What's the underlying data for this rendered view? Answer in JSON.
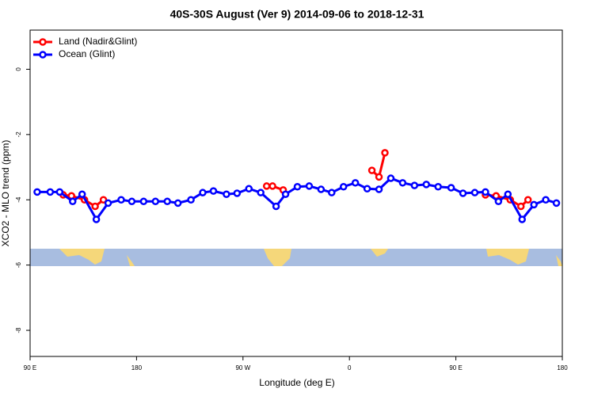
{
  "chart_data": {
    "type": "line",
    "title": "40S-30S August (Ver 9)   2014-09-06 to 2018-12-31",
    "x_label": "Longitude (deg E)",
    "y_label": "XCO2 - MLO trend (ppm)",
    "xlim": [
      90,
      540
    ],
    "xticks": [
      {
        "value": 90,
        "label": "90 E"
      },
      {
        "value": 180,
        "label": "180"
      },
      {
        "value": 270,
        "label": "90 W"
      },
      {
        "value": 360,
        "label": "0"
      },
      {
        "value": 450,
        "label": "90 E"
      },
      {
        "value": 540,
        "label": "180"
      }
    ],
    "ylim": [
      -8.8,
      1.2
    ],
    "yticks": [
      0,
      -2,
      -4,
      -6,
      -8
    ],
    "legend": "top-left",
    "series": [
      {
        "name": "Land (Nadir&Glint)",
        "color": "#ff0000",
        "x": [
          118,
          125,
          136,
          145,
          152,
          null,
          290,
          295,
          304,
          null,
          379,
          385,
          390,
          null,
          475,
          484,
          496,
          505,
          511
        ],
        "values": [
          -3.85,
          -3.88,
          -4.0,
          -4.2,
          -4.0,
          null,
          -3.58,
          -3.58,
          -3.7,
          null,
          -3.1,
          -3.3,
          -2.56,
          null,
          -3.85,
          -3.88,
          -4.0,
          -4.2,
          -4.0
        ]
      },
      {
        "name": "Ocean (Glint)",
        "color": "#0000ff",
        "x": [
          96,
          107,
          115,
          126,
          134,
          146,
          156,
          167,
          176,
          186,
          196,
          206,
          215,
          226,
          236,
          245,
          256,
          265,
          275,
          285,
          298,
          306,
          316,
          326,
          336,
          345,
          355,
          365,
          375,
          385,
          395,
          405,
          415,
          425,
          435,
          446,
          456,
          466,
          475,
          486,
          494,
          506,
          516,
          526,
          535
        ],
        "values": [
          -3.76,
          -3.76,
          -3.76,
          -4.05,
          -3.83,
          -4.6,
          -4.1,
          -4.0,
          -4.05,
          -4.05,
          -4.05,
          -4.05,
          -4.1,
          -4.0,
          -3.78,
          -3.73,
          -3.83,
          -3.8,
          -3.66,
          -3.78,
          -4.2,
          -3.83,
          -3.6,
          -3.58,
          -3.68,
          -3.78,
          -3.6,
          -3.48,
          -3.66,
          -3.68,
          -3.34,
          -3.48,
          -3.56,
          -3.53,
          -3.6,
          -3.63,
          -3.8,
          -3.78,
          -3.76,
          -4.05,
          -3.83,
          -4.6,
          -4.15,
          -4.0,
          -4.1
        ]
      }
    ]
  }
}
